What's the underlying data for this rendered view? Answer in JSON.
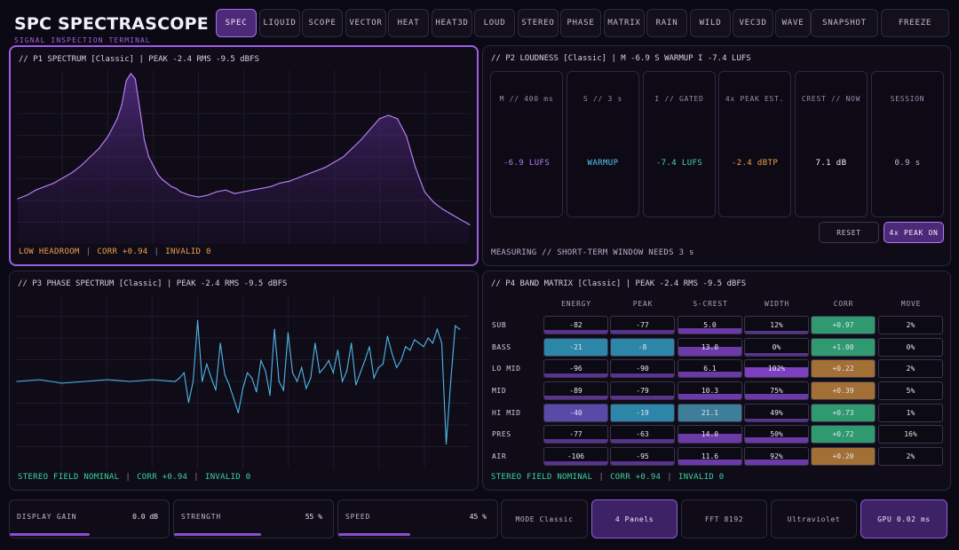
{
  "app": {
    "title": "SPC SPECTRASCOPE",
    "subtitle": "SIGNAL INSPECTION TERMINAL"
  },
  "tabs": [
    "SPEC",
    "LIQUID",
    "SCOPE",
    "VECTOR",
    "HEAT",
    "HEAT3D",
    "LOUD",
    "STEREO",
    "PHASE",
    "MATRIX",
    "RAIN",
    "WILD",
    "VEC3D",
    "WAVE"
  ],
  "active_tab": "SPEC",
  "actions": {
    "snapshot": "SNAPSHOT",
    "freeze": "FREEZE"
  },
  "p1": {
    "title": "// P1 SPECTRUM [Classic] | PEAK -2.4 RMS -9.5 dBFS",
    "status": [
      "LOW HEADROOM",
      "CORR +0.94",
      "INVALID 0"
    ],
    "chart_data": {
      "type": "area",
      "x": [
        0,
        2,
        4,
        6,
        8,
        10,
        12,
        14,
        16,
        18,
        20,
        22,
        23,
        24,
        25,
        26,
        27,
        28,
        29,
        30,
        31,
        32,
        33,
        34,
        35,
        36,
        38,
        40,
        42,
        44,
        46,
        48,
        50,
        52,
        54,
        56,
        58,
        60,
        62,
        64,
        66,
        68,
        70,
        72,
        74,
        76,
        78,
        80,
        82,
        84,
        86,
        88,
        90,
        92,
        94,
        96,
        98,
        100
      ],
      "values": [
        0.26,
        0.28,
        0.31,
        0.33,
        0.35,
        0.38,
        0.41,
        0.45,
        0.5,
        0.55,
        0.62,
        0.72,
        0.8,
        0.94,
        0.98,
        0.95,
        0.78,
        0.6,
        0.5,
        0.45,
        0.4,
        0.37,
        0.35,
        0.33,
        0.32,
        0.3,
        0.28,
        0.27,
        0.28,
        0.3,
        0.31,
        0.29,
        0.3,
        0.31,
        0.32,
        0.33,
        0.35,
        0.36,
        0.38,
        0.4,
        0.42,
        0.44,
        0.47,
        0.5,
        0.55,
        0.6,
        0.66,
        0.72,
        0.74,
        0.72,
        0.62,
        0.44,
        0.3,
        0.24,
        0.2,
        0.17,
        0.14,
        0.11
      ],
      "ylim": [
        0,
        1
      ],
      "grid": true,
      "color": "#b77cf0"
    }
  },
  "p2": {
    "title": "// P2 LOUDNESS [Classic] | M -6.9  S WARMUP I -7.4  LUFS",
    "cards": [
      {
        "label": "M // 400 ms",
        "value": "-6.9 LUFS",
        "color": "#b67ef5"
      },
      {
        "label": "S // 3 s",
        "value": "WARMUP",
        "color": "#5cc3f2"
      },
      {
        "label": "I // GATED",
        "value": "-7.4 LUFS",
        "color": "#3fd8a8"
      },
      {
        "label": "4x PEAK EST.",
        "value": "-2.4 dBTP",
        "color": "#f0a14a"
      },
      {
        "label": "CREST // NOW",
        "value": "7.1 dB",
        "color": "#f1ecfa"
      },
      {
        "label": "SESSION",
        "value": "0.9 s",
        "color": "#c2b9d3"
      }
    ],
    "reset_label": "RESET",
    "peak_label": "4x PEAK ON",
    "status": "MEASURING // SHORT-TERM WINDOW NEEDS 3 s"
  },
  "p3": {
    "title": "// P3 PHASE SPECTRUM [Classic] | PEAK -2.4 RMS -9.5 dBFS",
    "status": [
      "STEREO FIELD NOMINAL",
      "CORR +0.94",
      "INVALID 0"
    ],
    "chart_data": {
      "type": "line",
      "x": [
        0,
        5,
        10,
        15,
        20,
        25,
        30,
        35,
        36,
        37,
        38,
        39,
        40,
        41,
        42,
        43,
        44,
        45,
        46,
        47,
        48,
        49,
        50,
        51,
        52,
        53,
        54,
        55,
        56,
        57,
        58,
        59,
        60,
        61,
        62,
        63,
        64,
        65,
        66,
        67,
        68,
        69,
        70,
        71,
        72,
        73,
        74,
        75,
        76,
        77,
        78,
        79,
        80,
        81,
        82,
        83,
        84,
        85,
        86,
        87,
        88,
        89,
        90,
        91,
        92,
        93,
        94,
        95,
        96,
        97,
        98
      ],
      "values": [
        0.5,
        0.51,
        0.49,
        0.5,
        0.51,
        0.5,
        0.51,
        0.5,
        0.52,
        0.55,
        0.38,
        0.5,
        0.85,
        0.5,
        0.6,
        0.52,
        0.45,
        0.72,
        0.54,
        0.48,
        0.4,
        0.32,
        0.46,
        0.55,
        0.52,
        0.44,
        0.62,
        0.56,
        0.42,
        0.8,
        0.5,
        0.45,
        0.78,
        0.55,
        0.5,
        0.58,
        0.46,
        0.52,
        0.72,
        0.55,
        0.58,
        0.62,
        0.55,
        0.68,
        0.5,
        0.56,
        0.72,
        0.48,
        0.55,
        0.62,
        0.7,
        0.52,
        0.58,
        0.6,
        0.76,
        0.66,
        0.58,
        0.62,
        0.7,
        0.68,
        0.74,
        0.72,
        0.7,
        0.75,
        0.72,
        0.8,
        0.72,
        0.14,
        0.5,
        0.82,
        0.8
      ],
      "ylim": [
        0,
        1
      ],
      "grid": true,
      "color": "#4fb8e8"
    }
  },
  "p4": {
    "title": "// P4 BAND MATRIX [Classic] | PEAK -2.4 RMS -9.5 dBFS",
    "status": [
      "STEREO FIELD NOMINAL",
      "CORR +0.94",
      "INVALID 0"
    ],
    "columns": [
      "ENERGY",
      "PEAK",
      "S-CREST",
      "WIDTH",
      "CORR",
      "MOVE"
    ],
    "rows": [
      {
        "label": "SUB",
        "cells": [
          "-82",
          "-77",
          "5.0",
          "12%",
          "+0.97",
          "2%"
        ]
      },
      {
        "label": "BASS",
        "cells": [
          "-21",
          "-8",
          "13.0",
          "0%",
          "+1.00",
          "0%"
        ]
      },
      {
        "label": "LO MID",
        "cells": [
          "-96",
          "-90",
          "6.1",
          "102%",
          "+0.22",
          "2%"
        ]
      },
      {
        "label": "MID",
        "cells": [
          "-89",
          "-79",
          "10.3",
          "75%",
          "+0.39",
          "5%"
        ]
      },
      {
        "label": "HI MID",
        "cells": [
          "-40",
          "-19",
          "21.1",
          "49%",
          "+0.73",
          "1%"
        ]
      },
      {
        "label": "PRES",
        "cells": [
          "-77",
          "-63",
          "14.0",
          "50%",
          "+0.72",
          "16%"
        ]
      },
      {
        "label": "AIR",
        "cells": [
          "-106",
          "-95",
          "11.6",
          "92%",
          "+0.20",
          "2%"
        ]
      }
    ]
  },
  "controls": {
    "gain": {
      "label": "DISPLAY GAIN",
      "value": "0.0 dB",
      "level": 0.5
    },
    "strength": {
      "label": "STRENGTH",
      "value": "55 %",
      "level": 0.55
    },
    "speed": {
      "label": "SPEED",
      "value": "45 %",
      "level": 0.45
    }
  },
  "footer": {
    "mode": "MODE Classic",
    "panels": "4 Panels",
    "fft": "FFT 8192",
    "theme": "Ultraviolet",
    "gpu": "GPU 0.02 ms"
  }
}
